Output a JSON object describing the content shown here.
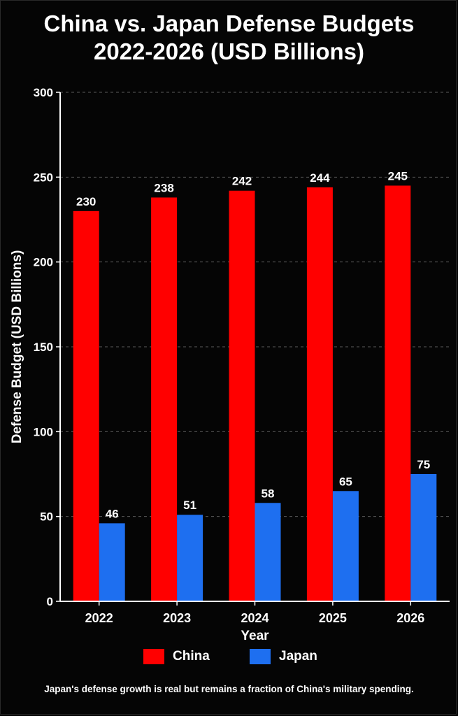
{
  "chart_data": {
    "type": "bar",
    "title": "China vs. Japan Defense Budgets",
    "subtitle": "2022-2026 (USD Billions)",
    "xlabel": "Year",
    "ylabel": "Defense Budget (USD Billions)",
    "categories": [
      "2022",
      "2023",
      "2024",
      "2025",
      "2026"
    ],
    "series": [
      {
        "name": "China",
        "color": "#ff0000",
        "values": [
          230,
          238,
          242,
          244,
          245
        ]
      },
      {
        "name": "Japan",
        "color": "#1e6ff0",
        "values": [
          46,
          51,
          58,
          65,
          75
        ]
      }
    ],
    "ylim": [
      0,
      300
    ],
    "yticks": [
      0,
      50,
      100,
      150,
      200,
      250,
      300
    ],
    "grid": true,
    "legend_position": "bottom-center",
    "footnote": "Japan's defense growth is real but remains a fraction of China's military spending."
  }
}
